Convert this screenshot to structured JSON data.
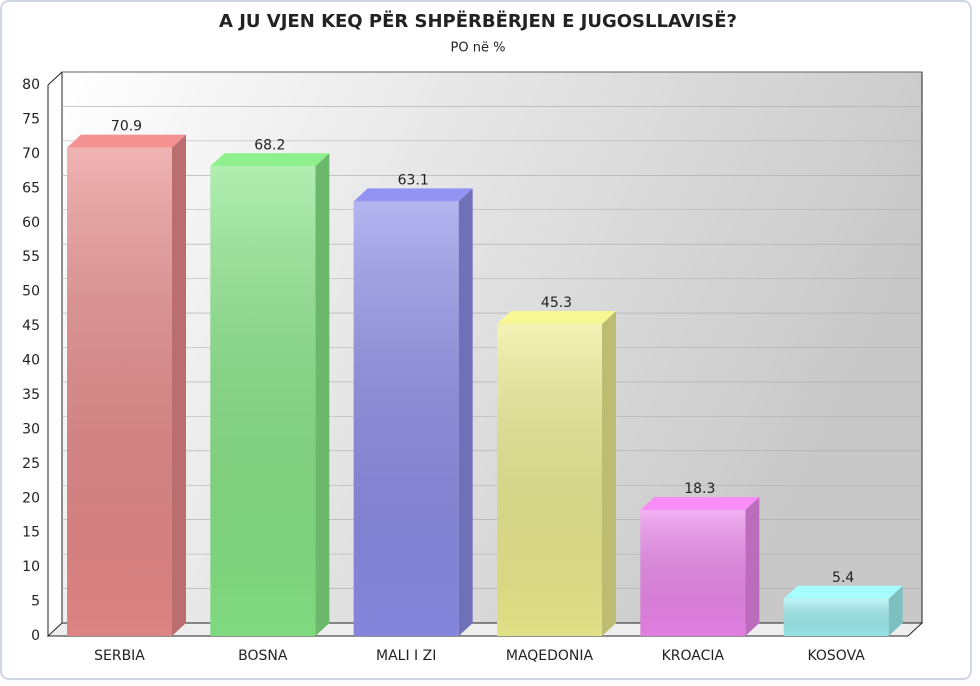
{
  "chart_data": {
    "type": "bar3d",
    "title": "A JU VJEN KEQ PËR SHPËRBËRJEN E JUGOSLLAVISË?",
    "subtitle": "PO në %",
    "categories": [
      "SERBIA",
      "BOSNA",
      "MALI I ZI",
      "MAQEDONIA",
      "KROACIA",
      "KOSOVA"
    ],
    "values": [
      70.9,
      68.2,
      63.1,
      45.3,
      18.3,
      5.4
    ],
    "colors": [
      "#e88a8a",
      "#86e586",
      "#8c8ce8",
      "#ecec8e",
      "#ec86ec",
      "#9ef0f2"
    ],
    "ylim": [
      0,
      80
    ],
    "yticks": [
      0,
      5,
      10,
      15,
      20,
      25,
      30,
      35,
      40,
      45,
      50,
      55,
      60,
      65,
      70,
      75,
      80
    ],
    "grid": true
  }
}
